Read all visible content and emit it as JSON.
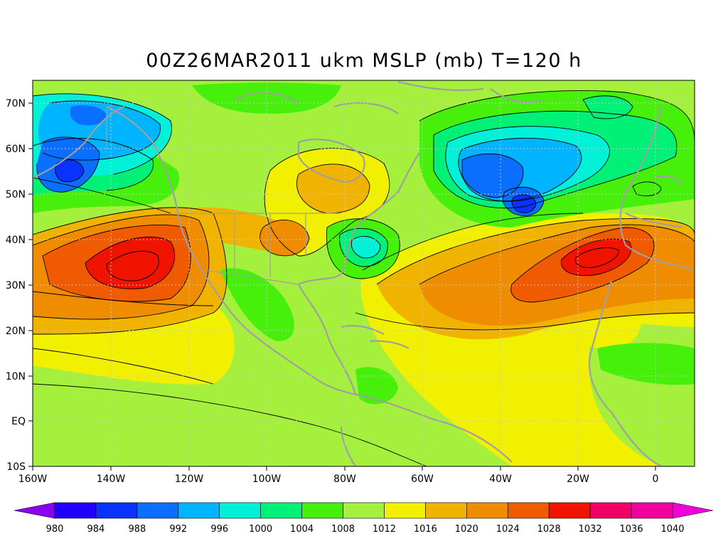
{
  "title": "00Z26MAR2011 ukm MSLP (mb) T=120 h",
  "map": {
    "lon_range": [
      -160,
      10
    ],
    "lat_range": [
      -10,
      75
    ],
    "lon_ticks": [
      "160W",
      "140W",
      "120W",
      "100W",
      "80W",
      "60W",
      "40W",
      "20W",
      "0"
    ],
    "lat_ticks": [
      "70N",
      "60N",
      "50N",
      "40N",
      "30N",
      "20N",
      "10N",
      "EQ",
      "10S"
    ],
    "background_level_color": "#a4f03c",
    "coast_color": "#a0a0a0",
    "pressure_systems": [
      {
        "kind": "high",
        "center": "Pacific ~135W 35N",
        "peak_mb": 1030
      },
      {
        "kind": "high",
        "center": "Atlantic ~15W 38N",
        "peak_mb": 1030
      },
      {
        "kind": "low",
        "center": "Gulf of Alaska ~153W 56N",
        "min_mb": 988
      },
      {
        "kind": "low",
        "center": "N Atlantic ~35W 48N",
        "min_mb": 986
      },
      {
        "kind": "low",
        "center": "US East coast ~75W 38N",
        "min_mb": 1002
      }
    ]
  },
  "colorbar": {
    "labels": [
      "980",
      "984",
      "988",
      "992",
      "996",
      "1000",
      "1004",
      "1008",
      "1012",
      "1016",
      "1020",
      "1024",
      "1028",
      "1032",
      "1036",
      "1040"
    ],
    "colors": [
      "#8a00f0",
      "#1f00ff",
      "#0a32ff",
      "#0a6eff",
      "#00b4ff",
      "#00f0d8",
      "#00f078",
      "#46f00a",
      "#a4f03c",
      "#f0f000",
      "#f0b400",
      "#f08c00",
      "#f05a00",
      "#f01400",
      "#f00064",
      "#f0009c",
      "#f000d8"
    ]
  }
}
